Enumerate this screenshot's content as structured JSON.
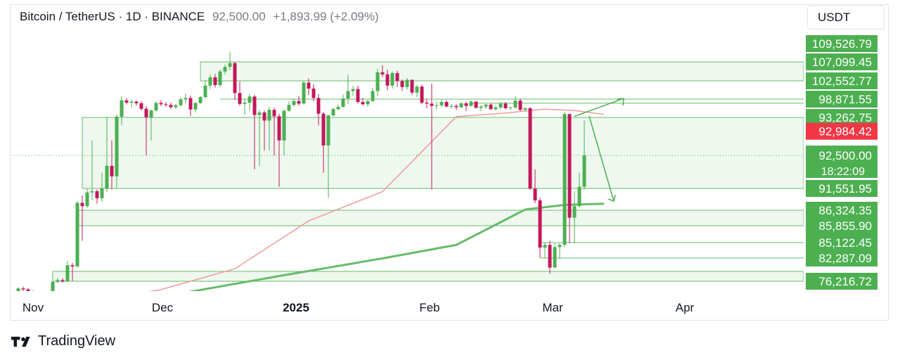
{
  "legend": {
    "symbol": "Bitcoin / TetherUS · 1D · BINANCE",
    "price": "92,500.00",
    "change": "+1,893.99 (+2.09%)"
  },
  "currency": "USDT",
  "brand": "TradingView",
  "colors": {
    "up": "#4caf50",
    "down": "#c2185b",
    "ma_fast": "#ef9a9a",
    "ma_slow": "#66bb6a",
    "zone_fill": "#e8f5e9",
    "zone_line": "#66bb6a",
    "badge_green": "#4caf50",
    "badge_red": "#f23645"
  },
  "chart_data": {
    "type": "candlestick",
    "y_labels": [
      {
        "value": 109526.79,
        "text": "109,526.79",
        "color": "green"
      },
      {
        "value": 107099.45,
        "text": "107,099.45",
        "color": "green"
      },
      {
        "value": 102552.77,
        "text": "102,552.77",
        "color": "green"
      },
      {
        "value": 98871.55,
        "text": "98,871.55",
        "color": "green"
      },
      {
        "value": 93262.75,
        "text": "93,262.75",
        "color": "green"
      },
      {
        "value": 92984.42,
        "text": "92,984.42",
        "color": "red"
      },
      {
        "value": 92500.0,
        "text": "92,500.00",
        "color": "green",
        "sub": "18:22:09"
      },
      {
        "value": 91551.95,
        "text": "91,551.95",
        "color": "green"
      },
      {
        "value": 86324.35,
        "text": "86,324.35",
        "color": "green"
      },
      {
        "value": 85855.9,
        "text": "85,855.90",
        "color": "green"
      },
      {
        "value": 85122.45,
        "text": "85,122.45",
        "color": "green"
      },
      {
        "value": 82287.09,
        "text": "82,287.09",
        "color": "green"
      },
      {
        "value": 76216.72,
        "text": "76,216.72",
        "color": "green"
      }
    ],
    "x_labels": [
      "Nov",
      "Dec",
      "2025",
      "Feb",
      "Mar",
      "Apr"
    ],
    "x_bold": "2025",
    "candles": [
      [
        70200,
        71500,
        69000,
        70800
      ],
      [
        70800,
        73200,
        70400,
        72600
      ],
      [
        72600,
        73500,
        71200,
        72100
      ],
      [
        72100,
        72800,
        70500,
        71000
      ],
      [
        71000,
        71600,
        69300,
        69800
      ],
      [
        69800,
        70900,
        69500,
        70600
      ],
      [
        70600,
        71200,
        68700,
        69200
      ],
      [
        69200,
        70300,
        68900,
        69900
      ],
      [
        69900,
        76400,
        69700,
        75900
      ],
      [
        75900,
        77100,
        75200,
        76500
      ],
      [
        76500,
        77000,
        75400,
        76100
      ],
      [
        76100,
        81500,
        75900,
        80400
      ],
      [
        80400,
        81000,
        76300,
        80100
      ],
      [
        80100,
        88500,
        79800,
        88100
      ],
      [
        88100,
        89900,
        85200,
        87300
      ],
      [
        87300,
        91500,
        86900,
        90600
      ],
      [
        90600,
        92800,
        88700,
        90900
      ],
      [
        90900,
        91300,
        87900,
        89200
      ],
      [
        89200,
        92000,
        88400,
        91500
      ],
      [
        91500,
        93400,
        90700,
        92200
      ],
      [
        92200,
        92800,
        91300,
        91900
      ],
      [
        91900,
        94100,
        91500,
        93500
      ],
      [
        93500,
        99500,
        93100,
        98500
      ],
      [
        98500,
        99100,
        97200,
        97800
      ],
      [
        97800,
        98800,
        96300,
        98100
      ],
      [
        98100,
        98400,
        96900,
        97600
      ],
      [
        97600,
        98200,
        95400,
        95900
      ],
      [
        95900,
        96700,
        92500,
        93300
      ],
      [
        93300,
        95700,
        92800,
        95400
      ],
      [
        95400,
        98200,
        95100,
        97700
      ],
      [
        97700,
        98600,
        96700,
        97300
      ],
      [
        97300,
        98000,
        96500,
        97100
      ],
      [
        97100,
        97900,
        95800,
        96400
      ],
      [
        96400,
        97400,
        95900,
        97000
      ],
      [
        97000,
        99200,
        96700,
        98800
      ],
      [
        98800,
        100000,
        97600,
        99100
      ],
      [
        99100,
        99600,
        93700,
        95700
      ],
      [
        95700,
        98100,
        94800,
        97700
      ],
      [
        97700,
        99500,
        97300,
        99300
      ],
      [
        99300,
        102700,
        99000,
        101600
      ],
      [
        101600,
        104100,
        100900,
        103400
      ],
      [
        103400,
        104200,
        101200,
        101700
      ],
      [
        101700,
        105300,
        101300,
        104800
      ],
      [
        104800,
        106500,
        104100,
        105900
      ],
      [
        105900,
        108400,
        105100,
        106800
      ],
      [
        106800,
        107100,
        98600,
        100100
      ],
      [
        100100,
        102400,
        96900,
        97400
      ],
      [
        97400,
        98900,
        94000,
        97800
      ],
      [
        97800,
        99900,
        95400,
        99400
      ],
      [
        99400,
        99700,
        92100,
        94000
      ],
      [
        94000,
        95500,
        92200,
        94800
      ],
      [
        94800,
        95400,
        92600,
        93200
      ],
      [
        93200,
        96500,
        92600,
        95600
      ],
      [
        95600,
        96300,
        92500,
        93600
      ],
      [
        93600,
        94400,
        91600,
        92800
      ],
      [
        92800,
        95800,
        92500,
        95300
      ],
      [
        95300,
        98200,
        95000,
        97100
      ],
      [
        97100,
        99000,
        96600,
        98300
      ],
      [
        98300,
        99500,
        96900,
        97500
      ],
      [
        97500,
        102600,
        97200,
        102200
      ],
      [
        102200,
        103100,
        99700,
        101000
      ],
      [
        101000,
        101900,
        98200,
        99100
      ],
      [
        99100,
        99900,
        93100,
        94400
      ],
      [
        94400,
        95000,
        92000,
        92700
      ],
      [
        92700,
        94100,
        89300,
        93900
      ],
      [
        93900,
        96300,
        93500,
        95800
      ],
      [
        95800,
        97200,
        95400,
        96500
      ],
      [
        96500,
        99800,
        96300,
        99000
      ],
      [
        99000,
        104000,
        97400,
        100500
      ],
      [
        100500,
        101500,
        99500,
        100900
      ],
      [
        100900,
        101600,
        97500,
        98000
      ],
      [
        98000,
        99100,
        97000,
        97300
      ],
      [
        97300,
        98600,
        96600,
        98300
      ],
      [
        98300,
        101100,
        98000,
        100500
      ],
      [
        100500,
        105500,
        99400,
        104600
      ],
      [
        104600,
        106300,
        103500,
        104100
      ],
      [
        104100,
        105200,
        100700,
        101600
      ],
      [
        101600,
        104800,
        101000,
        104400
      ],
      [
        104400,
        105000,
        101300,
        102500
      ],
      [
        102500,
        102900,
        100500,
        101300
      ],
      [
        101300,
        103200,
        100800,
        102800
      ],
      [
        102800,
        102900,
        99700,
        100200
      ],
      [
        100200,
        101700,
        99300,
        101400
      ],
      [
        101400,
        101800,
        97300,
        97800
      ],
      [
        97800,
        98900,
        96100,
        97500
      ],
      [
        97500,
        102000,
        91300,
        96800
      ],
      [
        96800,
        98100,
        95600,
        97000
      ],
      [
        97000,
        98700,
        96300,
        98000
      ],
      [
        98000,
        98500,
        96400,
        96600
      ],
      [
        96600,
        97400,
        95900,
        96800
      ],
      [
        96800,
        97300,
        95500,
        96400
      ],
      [
        96400,
        97900,
        96000,
        97600
      ],
      [
        97600,
        98100,
        95200,
        96800
      ],
      [
        96800,
        98400,
        96600,
        98100
      ],
      [
        98100,
        98300,
        96000,
        96200
      ],
      [
        96200,
        97000,
        95200,
        96600
      ],
      [
        96600,
        97300,
        95900,
        97200
      ],
      [
        97200,
        97600,
        95500,
        95800
      ],
      [
        95800,
        96900,
        95300,
        96300
      ],
      [
        96300,
        97900,
        95800,
        97500
      ],
      [
        97500,
        98000,
        95700,
        96100
      ],
      [
        96100,
        96600,
        95600,
        96300
      ],
      [
        96300,
        99400,
        96000,
        98400
      ],
      [
        98400,
        99000,
        95200,
        95600
      ],
      [
        95600,
        96300,
        95100,
        96100
      ],
      [
        96100,
        96400,
        91200,
        91500
      ],
      [
        91500,
        92100,
        88000,
        88700
      ],
      [
        88700,
        89400,
        82300,
        84200
      ],
      [
        84200,
        85100,
        82200,
        84700
      ],
      [
        84700,
        85200,
        78200,
        79800
      ],
      [
        79800,
        85000,
        79700,
        84300
      ],
      [
        84300,
        85000,
        82000,
        84700
      ],
      [
        84700,
        95000,
        84300,
        94300
      ],
      [
        94300,
        94400,
        85000,
        86100
      ],
      [
        86100,
        90900,
        85000,
        87300
      ],
      [
        87300,
        92000,
        87000,
        91600
      ],
      [
        91600,
        93200,
        91300,
        92500
      ]
    ],
    "zones": [
      {
        "from": 102552.77,
        "to": 107099.45,
        "x0": 38,
        "x1": 999
      },
      {
        "from": 91551.95,
        "to": 93262.75,
        "x0": 14,
        "x1": 999
      },
      {
        "from": 85855.9,
        "to": 86324.35,
        "x0": 13,
        "x1": 999
      },
      {
        "from": 76216.72,
        "to": 78800,
        "x0": 8,
        "x1": 999
      }
    ],
    "levels": [
      {
        "value": 98871.55,
        "x0": 42
      },
      {
        "value": 97600,
        "x0": 93
      },
      {
        "value": 85122.45,
        "x0": 107
      },
      {
        "value": 82287.09,
        "x0": 107
      }
    ],
    "ma_fast": [
      [
        12,
        65000
      ],
      [
        30,
        72000
      ],
      [
        45,
        79500
      ],
      [
        60,
        86000
      ],
      [
        75,
        90800
      ],
      [
        90,
        93500
      ],
      [
        100,
        94600
      ],
      [
        108,
        95800
      ],
      [
        114,
        95400
      ],
      [
        120,
        94200
      ]
    ],
    "ma_slow": [
      [
        18,
        63000
      ],
      [
        35,
        70500
      ],
      [
        55,
        77800
      ],
      [
        75,
        82200
      ],
      [
        90,
        84700
      ],
      [
        104,
        86500
      ],
      [
        112,
        87600
      ],
      [
        120,
        87900
      ]
    ],
    "projection": [
      [
        114,
        93600
      ],
      [
        124,
        99000
      ],
      [
        117,
        93600
      ],
      [
        122,
        88500
      ]
    ]
  }
}
